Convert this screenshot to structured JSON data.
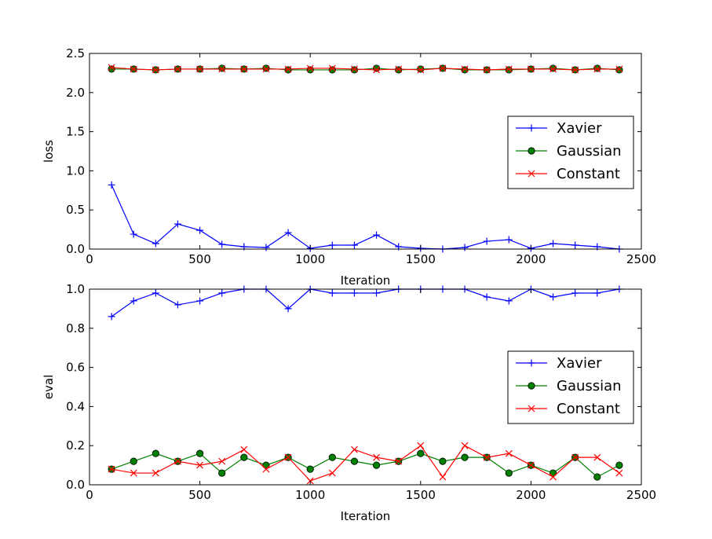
{
  "chart_data": [
    {
      "type": "line",
      "xlabel": "Iteration",
      "ylabel": "loss",
      "xlim": [
        0,
        2500
      ],
      "ylim": [
        0,
        2.5
      ],
      "xticks": [
        0,
        500,
        1000,
        1500,
        2000,
        2500
      ],
      "xtick_labels": [
        "0",
        "500",
        "1000",
        "1500",
        "2000",
        "2500"
      ],
      "yticks": [
        0,
        0.5,
        1.0,
        1.5,
        2.0,
        2.5
      ],
      "ytick_labels": [
        "0.0",
        "0.5",
        "1.0",
        "1.5",
        "2.0",
        "2.5"
      ],
      "grid": false,
      "legend": "center-right",
      "x": [
        100,
        200,
        300,
        400,
        500,
        600,
        700,
        800,
        900,
        1000,
        1100,
        1200,
        1300,
        1400,
        1500,
        1600,
        1700,
        1800,
        1900,
        2000,
        2100,
        2200,
        2300,
        2400
      ],
      "series": [
        {
          "name": "Xavier",
          "color": "#0000ff",
          "marker": "plus",
          "values": [
            0.82,
            0.19,
            0.07,
            0.32,
            0.24,
            0.06,
            0.03,
            0.02,
            0.21,
            0.01,
            0.05,
            0.05,
            0.18,
            0.03,
            0.01,
            0.0,
            0.02,
            0.1,
            0.12,
            0.01,
            0.07,
            0.05,
            0.03,
            0.0
          ]
        },
        {
          "name": "Gaussian",
          "color": "#008000",
          "marker": "circle",
          "values": [
            2.3,
            2.3,
            2.29,
            2.3,
            2.3,
            2.31,
            2.3,
            2.31,
            2.29,
            2.29,
            2.29,
            2.29,
            2.31,
            2.29,
            2.3,
            2.31,
            2.29,
            2.29,
            2.29,
            2.3,
            2.31,
            2.29,
            2.31,
            2.29
          ]
        },
        {
          "name": "Constant",
          "color": "#ff0000",
          "marker": "x",
          "values": [
            2.32,
            2.3,
            2.29,
            2.3,
            2.3,
            2.3,
            2.3,
            2.3,
            2.3,
            2.31,
            2.31,
            2.3,
            2.29,
            2.3,
            2.29,
            2.31,
            2.3,
            2.29,
            2.3,
            2.3,
            2.3,
            2.29,
            2.3,
            2.3
          ]
        }
      ]
    },
    {
      "type": "line",
      "xlabel": "Iteration",
      "ylabel": "eval",
      "xlim": [
        0,
        2500
      ],
      "ylim": [
        0,
        1.0
      ],
      "xticks": [
        0,
        500,
        1000,
        1500,
        2000,
        2500
      ],
      "xtick_labels": [
        "0",
        "500",
        "1000",
        "1500",
        "2000",
        "2500"
      ],
      "yticks": [
        0,
        0.2,
        0.4,
        0.6,
        0.8,
        1.0
      ],
      "ytick_labels": [
        "0.0",
        "0.2",
        "0.4",
        "0.6",
        "0.8",
        "1.0"
      ],
      "grid": false,
      "legend": "center-right",
      "x": [
        100,
        200,
        300,
        400,
        500,
        600,
        700,
        800,
        900,
        1000,
        1100,
        1200,
        1300,
        1400,
        1500,
        1600,
        1700,
        1800,
        1900,
        2000,
        2100,
        2200,
        2300,
        2400
      ],
      "series": [
        {
          "name": "Xavier",
          "color": "#0000ff",
          "marker": "plus",
          "values": [
            0.86,
            0.94,
            0.98,
            0.92,
            0.94,
            0.98,
            1.0,
            1.0,
            0.9,
            1.0,
            0.98,
            0.98,
            0.98,
            1.0,
            1.0,
            1.0,
            1.0,
            0.96,
            0.94,
            1.0,
            0.96,
            0.98,
            0.98,
            1.0
          ]
        },
        {
          "name": "Gaussian",
          "color": "#008000",
          "marker": "circle",
          "values": [
            0.08,
            0.12,
            0.16,
            0.12,
            0.16,
            0.06,
            0.14,
            0.1,
            0.14,
            0.08,
            0.14,
            0.12,
            0.1,
            0.12,
            0.16,
            0.12,
            0.14,
            0.14,
            0.06,
            0.1,
            0.06,
            0.14,
            0.04,
            0.1
          ]
        },
        {
          "name": "Constant",
          "color": "#ff0000",
          "marker": "x",
          "values": [
            0.08,
            0.06,
            0.06,
            0.12,
            0.1,
            0.12,
            0.18,
            0.08,
            0.14,
            0.02,
            0.06,
            0.18,
            0.14,
            0.12,
            0.2,
            0.04,
            0.2,
            0.14,
            0.16,
            0.1,
            0.04,
            0.14,
            0.14,
            0.06
          ]
        }
      ]
    }
  ]
}
